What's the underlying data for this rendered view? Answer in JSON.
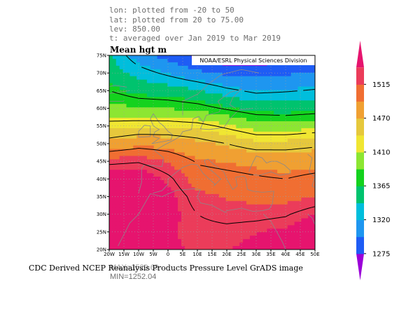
{
  "header": {
    "lon": "lon: plotted from -20 to 50",
    "lat": "lat: plotted from 20 to 75.00",
    "lev": "lev: 850.00",
    "t": "t: averaged over Jan 2019 to Mar 2019"
  },
  "plot_title": "Mean hgt m",
  "credit": "NOAA/ESRL Physical Sciences Division",
  "footer": "CDC Derived NCEP Reanalysis Products Pressure Level GrADS image",
  "stats": {
    "max": "MAX=1529.69",
    "min": "MIN=1252.04"
  },
  "chart_data": {
    "type": "heatmap",
    "title": "Mean hgt m",
    "variable": "Geopotential height (m), 850 mb",
    "period": "Jan 2019 to Mar 2019",
    "x": {
      "label": "",
      "range": [
        -20,
        50
      ],
      "ticks": [
        "20W",
        "15W",
        "10W",
        "5W",
        "0",
        "5E",
        "10E",
        "15E",
        "20E",
        "25E",
        "30E",
        "35E",
        "40E",
        "45E",
        "50E"
      ]
    },
    "y": {
      "label": "",
      "range": [
        20,
        75
      ],
      "ticks": [
        "20N",
        "25N",
        "30N",
        "35N",
        "40N",
        "45N",
        "50N",
        "55N",
        "60N",
        "65N",
        "70N",
        "75N"
      ]
    },
    "colorbar": {
      "levels": [
        1275,
        1320,
        1365,
        1410,
        1470,
        1515
      ],
      "colors": [
        "#9b00d8",
        "#1e5cf5",
        "#1e96f0",
        "#00bedc",
        "#00c36e",
        "#14d21e",
        "#8ce632",
        "#f0e632",
        "#e6c83c",
        "#f0a032",
        "#f06e32",
        "#eb3c5a",
        "#e6146e"
      ]
    },
    "field": {
      "lat": [
        75,
        70,
        65,
        60,
        55,
        50,
        45,
        40,
        35,
        30,
        25,
        20
      ],
      "lon": [
        -20,
        -10,
        0,
        10,
        20,
        30,
        40,
        50
      ],
      "values": [
        [
          1340,
          1305,
          1285,
          1265,
          1255,
          1255,
          1262,
          1270
        ],
        [
          1350,
          1330,
          1315,
          1300,
          1290,
          1288,
          1292,
          1295
        ],
        [
          1365,
          1352,
          1348,
          1340,
          1325,
          1315,
          1318,
          1322
        ],
        [
          1388,
          1382,
          1380,
          1374,
          1362,
          1350,
          1348,
          1352
        ],
        [
          1418,
          1422,
          1422,
          1418,
          1405,
          1392,
          1390,
          1395
        ],
        [
          1450,
          1460,
          1458,
          1450,
          1440,
          1428,
          1430,
          1435
        ],
        [
          1495,
          1498,
          1485,
          1468,
          1465,
          1462,
          1458,
          1460
        ],
        [
          1522,
          1525,
          1505,
          1478,
          1475,
          1472,
          1470,
          1475
        ],
        [
          1527,
          1528,
          1515,
          1492,
          1486,
          1482,
          1480,
          1487
        ],
        [
          1520,
          1522,
          1515,
          1500,
          1494,
          1495,
          1498,
          1510
        ],
        [
          1515,
          1515,
          1510,
          1505,
          1505,
          1508,
          1512,
          1520
        ],
        [
          1512,
          1512,
          1510,
          1508,
          1508,
          1512,
          1518,
          1525
        ]
      ]
    },
    "max": 1529.69,
    "min": 1252.04
  }
}
